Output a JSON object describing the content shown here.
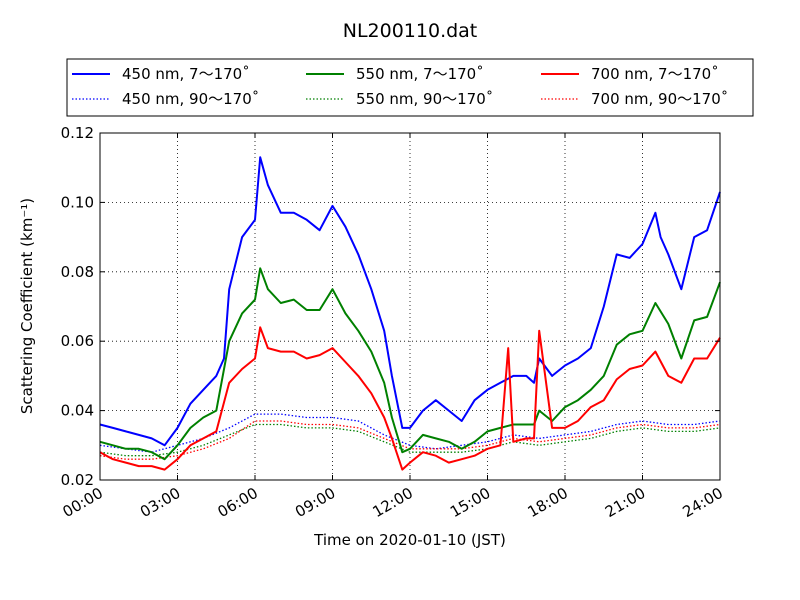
{
  "chart_data": {
    "type": "line",
    "title": "NL200110.dat",
    "xlabel": "Time on 2020-01-10 (JST)",
    "ylabel": "Scattering Coefficient (km⁻¹)",
    "xlim": [
      0,
      24
    ],
    "ylim": [
      0.02,
      0.12
    ],
    "x_tick_labels": [
      "00:00",
      "03:00",
      "06:00",
      "09:00",
      "12:00",
      "15:00",
      "18:00",
      "21:00",
      "24:00"
    ],
    "y_tick_labels": [
      "0.02",
      "0.04",
      "0.06",
      "0.08",
      "0.10",
      "0.12"
    ],
    "grid": true,
    "legend_placement": "top, outside plot, 3 columns",
    "series": [
      {
        "name": "450 nm, 7～170˚",
        "color": "#0000ff",
        "style": "solid",
        "x": [
          0,
          0.5,
          1,
          1.5,
          2,
          2.5,
          3,
          3.5,
          4,
          4.5,
          4.8,
          5,
          5.5,
          6,
          6.2,
          6.5,
          7,
          7.5,
          8,
          8.5,
          9,
          9.5,
          10,
          10.5,
          11,
          11.3,
          11.7,
          12,
          12.5,
          13,
          13.5,
          14,
          14.5,
          15,
          15.5,
          16,
          16.5,
          16.8,
          17,
          17.5,
          18,
          18.5,
          19,
          19.5,
          20,
          20.5,
          21,
          21.5,
          21.7,
          22,
          22.5,
          23,
          23.5,
          24
        ],
        "y": [
          0.036,
          0.035,
          0.034,
          0.033,
          0.032,
          0.03,
          0.035,
          0.042,
          0.046,
          0.05,
          0.055,
          0.075,
          0.09,
          0.095,
          0.113,
          0.105,
          0.097,
          0.097,
          0.095,
          0.092,
          0.099,
          0.093,
          0.085,
          0.075,
          0.063,
          0.05,
          0.035,
          0.035,
          0.04,
          0.043,
          0.04,
          0.037,
          0.043,
          0.046,
          0.048,
          0.05,
          0.05,
          0.048,
          0.055,
          0.05,
          0.053,
          0.055,
          0.058,
          0.07,
          0.085,
          0.084,
          0.088,
          0.097,
          0.09,
          0.085,
          0.075,
          0.09,
          0.092,
          0.103
        ]
      },
      {
        "name": "450 nm, 90～170˚",
        "color": "#0000ff",
        "style": "dotted",
        "x": [
          0,
          1,
          2,
          3,
          4,
          5,
          6,
          7,
          8,
          9,
          10,
          11,
          12,
          13,
          14,
          15,
          16,
          17,
          18,
          19,
          20,
          21,
          22,
          23,
          24
        ],
        "y": [
          0.03,
          0.029,
          0.028,
          0.03,
          0.032,
          0.035,
          0.039,
          0.039,
          0.038,
          0.038,
          0.037,
          0.033,
          0.03,
          0.029,
          0.03,
          0.031,
          0.033,
          0.032,
          0.033,
          0.034,
          0.036,
          0.037,
          0.036,
          0.036,
          0.037
        ]
      },
      {
        "name": "550 nm, 7～170˚",
        "color": "#008000",
        "style": "solid",
        "x": [
          0,
          0.5,
          1,
          1.5,
          2,
          2.5,
          3,
          3.5,
          4,
          4.5,
          5,
          5.5,
          6,
          6.2,
          6.5,
          7,
          7.5,
          8,
          8.5,
          9,
          9.5,
          10,
          10.5,
          11,
          11.3,
          11.7,
          12,
          12.5,
          13,
          13.5,
          14,
          14.5,
          15,
          15.5,
          16,
          16.5,
          16.8,
          17,
          17.5,
          18,
          18.5,
          19,
          19.5,
          20,
          20.5,
          21,
          21.5,
          22,
          22.5,
          23,
          23.5,
          24
        ],
        "y": [
          0.031,
          0.03,
          0.029,
          0.029,
          0.028,
          0.026,
          0.03,
          0.035,
          0.038,
          0.04,
          0.06,
          0.068,
          0.072,
          0.081,
          0.075,
          0.071,
          0.072,
          0.069,
          0.069,
          0.075,
          0.068,
          0.063,
          0.057,
          0.048,
          0.038,
          0.028,
          0.029,
          0.033,
          0.032,
          0.031,
          0.029,
          0.031,
          0.034,
          0.035,
          0.036,
          0.036,
          0.036,
          0.04,
          0.037,
          0.041,
          0.043,
          0.046,
          0.05,
          0.059,
          0.062,
          0.063,
          0.071,
          0.065,
          0.055,
          0.066,
          0.067,
          0.077
        ]
      },
      {
        "name": "550 nm, 90～170˚",
        "color": "#008000",
        "style": "dotted",
        "x": [
          0,
          1,
          2,
          3,
          4,
          5,
          6,
          7,
          8,
          9,
          10,
          11,
          12,
          13,
          14,
          15,
          16,
          17,
          18,
          19,
          20,
          21,
          22,
          23,
          24
        ],
        "y": [
          0.028,
          0.027,
          0.027,
          0.028,
          0.03,
          0.033,
          0.036,
          0.036,
          0.035,
          0.035,
          0.034,
          0.031,
          0.028,
          0.028,
          0.028,
          0.029,
          0.031,
          0.03,
          0.031,
          0.032,
          0.034,
          0.035,
          0.034,
          0.034,
          0.035
        ]
      },
      {
        "name": "700 nm, 7～170˚",
        "color": "#ff0000",
        "style": "solid",
        "x": [
          0,
          0.5,
          1,
          1.5,
          2,
          2.5,
          3,
          3.5,
          4,
          4.5,
          5,
          5.5,
          6,
          6.2,
          6.5,
          7,
          7.5,
          8,
          8.5,
          9,
          9.5,
          10,
          10.5,
          11,
          11.3,
          11.7,
          12,
          12.5,
          13,
          13.5,
          14,
          14.5,
          15,
          15.5,
          15.8,
          16,
          16.5,
          16.8,
          17,
          17.5,
          18,
          18.5,
          19,
          19.5,
          20,
          20.5,
          21,
          21.5,
          22,
          22.5,
          23,
          23.5,
          24
        ],
        "y": [
          0.028,
          0.026,
          0.025,
          0.024,
          0.024,
          0.023,
          0.026,
          0.03,
          0.032,
          0.034,
          0.048,
          0.052,
          0.055,
          0.064,
          0.058,
          0.057,
          0.057,
          0.055,
          0.056,
          0.058,
          0.054,
          0.05,
          0.045,
          0.038,
          0.032,
          0.023,
          0.025,
          0.028,
          0.027,
          0.025,
          0.026,
          0.027,
          0.029,
          0.03,
          0.058,
          0.031,
          0.032,
          0.032,
          0.063,
          0.035,
          0.035,
          0.037,
          0.041,
          0.043,
          0.049,
          0.052,
          0.053,
          0.057,
          0.05,
          0.048,
          0.055,
          0.055,
          0.061
        ]
      },
      {
        "name": "700 nm, 90～170˚",
        "color": "#ff0000",
        "style": "dotted",
        "x": [
          0,
          1,
          2,
          3,
          4,
          5,
          6,
          7,
          8,
          9,
          10,
          11,
          12,
          13,
          14,
          15,
          16,
          17,
          18,
          19,
          20,
          21,
          22,
          23,
          24
        ],
        "y": [
          0.027,
          0.026,
          0.026,
          0.027,
          0.029,
          0.032,
          0.037,
          0.037,
          0.036,
          0.036,
          0.035,
          0.032,
          0.029,
          0.029,
          0.029,
          0.03,
          0.032,
          0.031,
          0.032,
          0.033,
          0.035,
          0.036,
          0.035,
          0.035,
          0.036
        ]
      }
    ]
  }
}
